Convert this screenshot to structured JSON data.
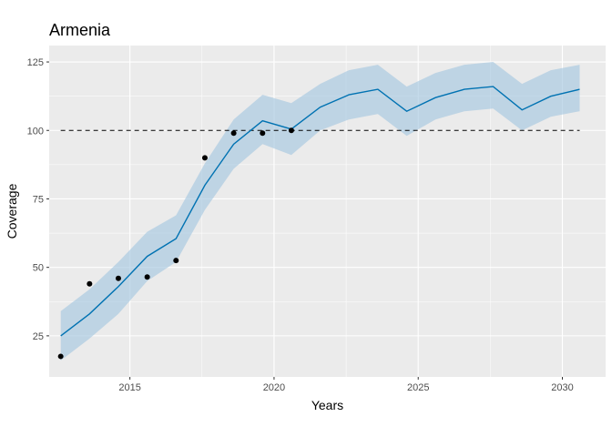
{
  "chart_data": {
    "type": "line",
    "title": "Armenia",
    "xlabel": "Years",
    "ylabel": "Coverage",
    "xlim": [
      2012.2,
      2031.5
    ],
    "ylim": [
      10,
      131
    ],
    "x_ticks": [
      2015,
      2020,
      2025,
      2030
    ],
    "y_ticks": [
      25,
      50,
      75,
      100,
      125
    ],
    "x_tick_labels": [
      "2015",
      "2020",
      "2025",
      "2030"
    ],
    "y_tick_labels": [
      "25",
      "50",
      "75",
      "100",
      "125"
    ],
    "reference_line": {
      "y": 100,
      "style": "dashed"
    },
    "series": [
      {
        "kind": "band",
        "color": "#a6c8e0",
        "x": [
          2012.6,
          2013.6,
          2014.6,
          2015.6,
          2016.6,
          2017.6,
          2018.6,
          2019.6,
          2020.6,
          2021.6,
          2022.6,
          2023.6,
          2024.6,
          2025.6,
          2026.6,
          2027.6,
          2028.6,
          2029.6,
          2030.6
        ],
        "lower": [
          16,
          24,
          33,
          45,
          52,
          71,
          86,
          95,
          91,
          100,
          104,
          106,
          98,
          104,
          107,
          108,
          100,
          105,
          107
        ],
        "upper": [
          34,
          42,
          52,
          63,
          69,
          88,
          104,
          113,
          110,
          117,
          122,
          124,
          116,
          121,
          124,
          125,
          117,
          122,
          124
        ]
      },
      {
        "kind": "line",
        "color": "#0072b2",
        "x": [
          2012.6,
          2013.6,
          2014.6,
          2015.6,
          2016.6,
          2017.6,
          2018.6,
          2019.6,
          2020.6,
          2021.6,
          2022.6,
          2023.6,
          2024.6,
          2025.6,
          2026.6,
          2027.6,
          2028.6,
          2029.6,
          2030.6
        ],
        "y": [
          25,
          33,
          43,
          54,
          60.5,
          80,
          95,
          103.5,
          100.5,
          108.5,
          113,
          115,
          107,
          112,
          115,
          116,
          107.5,
          112.5,
          115
        ]
      },
      {
        "kind": "points",
        "color": "#000000",
        "x": [
          2012.6,
          2013.6,
          2014.6,
          2015.6,
          2016.6,
          2017.6,
          2018.6,
          2019.6,
          2020.6
        ],
        "y": [
          17.5,
          44,
          46,
          46.5,
          52.5,
          90,
          99,
          99,
          100
        ]
      }
    ]
  }
}
